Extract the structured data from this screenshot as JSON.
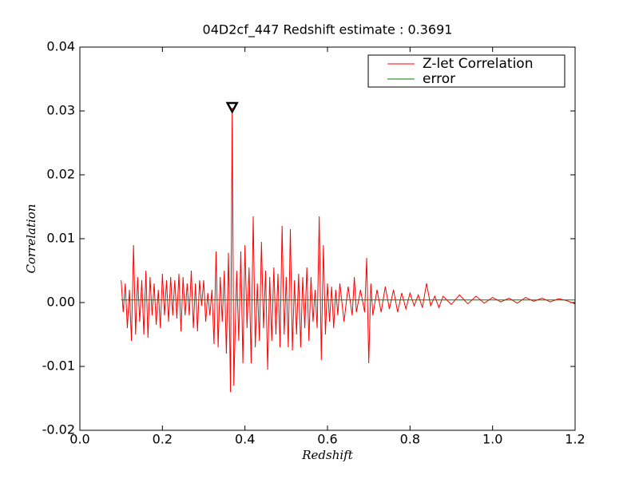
{
  "chart_data": {
    "type": "line",
    "title": "04D2cf_447 Redshift estimate : 0.3691",
    "xlabel": "Redshift",
    "ylabel": "Correlation",
    "xlim": [
      0,
      1.2
    ],
    "ylim": [
      -0.02,
      0.04
    ],
    "xticks": [
      {
        "value": 0,
        "label": "0.0"
      },
      0.2,
      0.4,
      0.6,
      0.8,
      {
        "value": 1,
        "label": "1.0"
      },
      1.2
    ],
    "yticks": [
      -0.02,
      -0.01,
      {
        "value": 0,
        "label": "0.00"
      },
      0.01,
      0.02,
      0.03,
      0.04
    ],
    "grid": false,
    "legend": "upper right",
    "series": [
      {
        "name": "Z-let Correlation",
        "color": "#ff0000",
        "x": [
          0.1,
          0.105,
          0.11,
          0.115,
          0.12,
          0.125,
          0.13,
          0.135,
          0.14,
          0.145,
          0.15,
          0.155,
          0.16,
          0.165,
          0.17,
          0.175,
          0.18,
          0.185,
          0.19,
          0.195,
          0.2,
          0.205,
          0.21,
          0.215,
          0.22,
          0.225,
          0.23,
          0.235,
          0.24,
          0.245,
          0.25,
          0.255,
          0.26,
          0.265,
          0.27,
          0.275,
          0.28,
          0.285,
          0.29,
          0.295,
          0.3,
          0.305,
          0.31,
          0.315,
          0.32,
          0.325,
          0.33,
          0.335,
          0.34,
          0.345,
          0.35,
          0.355,
          0.36,
          0.365,
          0.3691,
          0.373,
          0.38,
          0.385,
          0.39,
          0.395,
          0.4,
          0.405,
          0.41,
          0.415,
          0.42,
          0.425,
          0.43,
          0.435,
          0.44,
          0.445,
          0.45,
          0.455,
          0.46,
          0.465,
          0.47,
          0.475,
          0.48,
          0.485,
          0.49,
          0.495,
          0.5,
          0.505,
          0.51,
          0.515,
          0.52,
          0.525,
          0.53,
          0.535,
          0.54,
          0.545,
          0.55,
          0.555,
          0.56,
          0.565,
          0.57,
          0.575,
          0.58,
          0.585,
          0.59,
          0.595,
          0.6,
          0.605,
          0.61,
          0.615,
          0.62,
          0.625,
          0.63,
          0.64,
          0.65,
          0.66,
          0.665,
          0.67,
          0.68,
          0.69,
          0.695,
          0.7,
          0.705,
          0.71,
          0.72,
          0.73,
          0.74,
          0.75,
          0.76,
          0.77,
          0.78,
          0.79,
          0.8,
          0.81,
          0.82,
          0.83,
          0.84,
          0.85,
          0.86,
          0.87,
          0.88,
          0.9,
          0.92,
          0.94,
          0.96,
          0.98,
          1.0,
          1.02,
          1.04,
          1.06,
          1.08,
          1.1,
          1.12,
          1.14,
          1.16,
          1.18,
          1.2
        ],
        "values": [
          0.0035,
          -0.0015,
          0.003,
          -0.004,
          0.002,
          -0.006,
          0.009,
          -0.005,
          0.004,
          -0.003,
          0.0035,
          -0.005,
          0.005,
          -0.0055,
          0.004,
          -0.002,
          0.003,
          -0.0035,
          0.002,
          -0.004,
          0.0045,
          -0.002,
          0.0035,
          -0.003,
          0.004,
          -0.002,
          0.0035,
          -0.0025,
          0.0045,
          -0.0045,
          0.004,
          -0.002,
          0.003,
          -0.002,
          0.005,
          -0.004,
          0.003,
          -0.0045,
          0.0035,
          -0.0005,
          0.0035,
          -0.003,
          0.0015,
          -0.002,
          0.002,
          -0.0065,
          0.008,
          -0.007,
          0.004,
          -0.003,
          0.005,
          -0.008,
          0.0078,
          -0.014,
          0.0305,
          -0.013,
          0.005,
          -0.006,
          0.008,
          -0.0095,
          0.009,
          -0.004,
          0.0055,
          -0.0095,
          0.0135,
          -0.007,
          0.003,
          -0.006,
          0.0095,
          -0.004,
          0.005,
          -0.0105,
          0.004,
          -0.006,
          0.0055,
          -0.005,
          0.0045,
          -0.007,
          0.012,
          -0.005,
          0.004,
          -0.007,
          0.0115,
          -0.0075,
          0.0035,
          -0.005,
          0.0045,
          -0.007,
          0.004,
          -0.004,
          0.0055,
          -0.006,
          0.004,
          -0.003,
          0.002,
          -0.004,
          0.0135,
          -0.009,
          0.009,
          -0.005,
          0.003,
          -0.003,
          0.0025,
          -0.004,
          0.002,
          -0.002,
          0.003,
          -0.003,
          0.0025,
          -0.002,
          0.004,
          -0.0015,
          0.002,
          -0.0015,
          0.007,
          -0.0095,
          0.003,
          -0.002,
          0.002,
          -0.0015,
          0.0025,
          -0.001,
          0.002,
          -0.0015,
          0.0015,
          -0.001,
          0.0015,
          -0.0005,
          0.0012,
          -0.0008,
          0.003,
          -0.0005,
          0.001,
          -0.0008,
          0.001,
          -0.0003,
          0.0012,
          -0.0002,
          0.001,
          -0.0001,
          0.0008,
          0.0001,
          0.0007,
          -0.0001,
          0.0008,
          0.0002,
          0.0007,
          0.0001,
          0.0006,
          0.0003,
          -0.0002
        ]
      },
      {
        "name": "error",
        "color": "#008000",
        "x": [
          0.1,
          1.2
        ],
        "values": [
          0.0004,
          0.0004
        ]
      }
    ],
    "marker": {
      "x": 0.3691,
      "y": 0.0305,
      "color": "#000000"
    }
  }
}
